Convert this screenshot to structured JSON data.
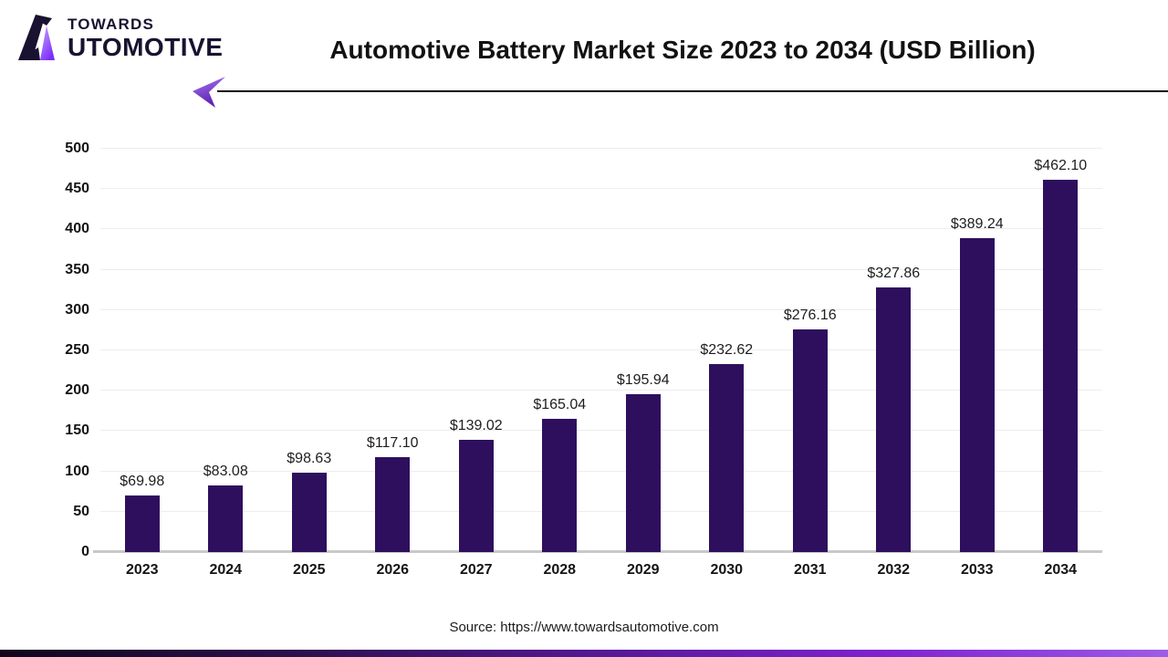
{
  "brand": {
    "line1": "TOWARDS",
    "line2": "UTOMOTIVE",
    "icon": "stylized-a-mountain-icon"
  },
  "header": {
    "title": "Automotive Battery Market Size 2023 to 2034 (USD Billion)"
  },
  "footer": {
    "source": "Source: https://www.towardsautomotive.com"
  },
  "colors": {
    "bar": "#2E0F5E",
    "accent_purple": "#7E22CE",
    "gridline": "#EDEDED",
    "axis_line": "#C9C9C9",
    "text": "#141414"
  },
  "chart_data": {
    "type": "bar",
    "title": "Automotive Battery Market Size 2023 to 2034 (USD Billion)",
    "unit": "USD Billion",
    "categories": [
      "2023",
      "2024",
      "2025",
      "2026",
      "2027",
      "2028",
      "2029",
      "2030",
      "2031",
      "2032",
      "2033",
      "2034"
    ],
    "values": [
      69.98,
      83.08,
      98.63,
      117.1,
      139.02,
      165.04,
      195.94,
      232.62,
      276.16,
      327.86,
      389.24,
      462.1
    ],
    "value_labels": [
      "$69.98",
      "$83.08",
      "$98.63",
      "$117.10",
      "$139.02",
      "$165.04",
      "$195.94",
      "$232.62",
      "$276.16",
      "$327.86",
      "$389.24",
      "$462.10"
    ],
    "ylim": [
      0,
      500
    ],
    "ytick_step": 50,
    "yticks": [
      0,
      50,
      100,
      150,
      200,
      250,
      300,
      350,
      400,
      450,
      500
    ],
    "grid": true,
    "legend_position": "none",
    "bar_color": "#2E0F5E"
  }
}
